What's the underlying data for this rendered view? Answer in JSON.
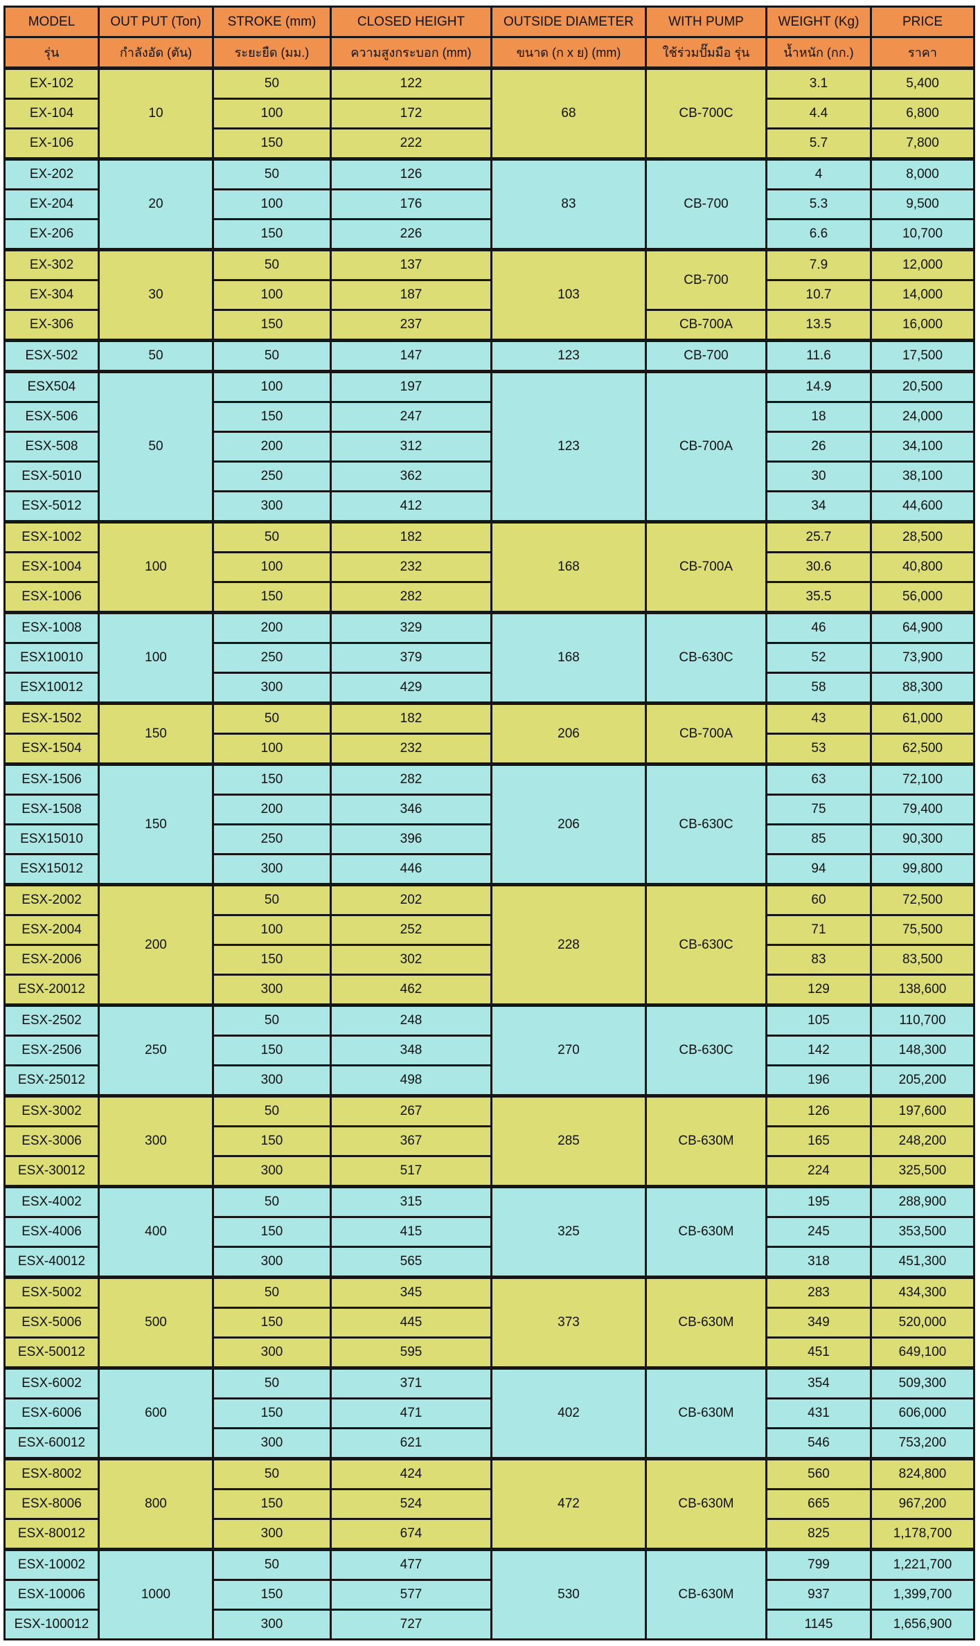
{
  "colors": {
    "header_bg": "#f0924d",
    "row_yellow": "#dcdd74",
    "row_cyan": "#abe7e5",
    "border": "#161616"
  },
  "table": {
    "headers_en": [
      "MODEL",
      "OUT PUT (Ton)",
      "STROKE (mm)",
      "CLOSED HEIGHT",
      "OUTSIDE DIAMETER",
      "WITH PUMP",
      "WEIGHT (Kg)",
      "PRICE"
    ],
    "headers_th": [
      "รุ่น",
      "กำลังอัด (ตัน)",
      "ระยะยืด (มม.)",
      "ความสูงกระบอก (mm)",
      "ขนาด (ก x ย) (mm)",
      "ใช้ร่วมปั๊มมือ รุ่น",
      "น้ำหนัก (กก.)",
      "ราคา"
    ],
    "groups": [
      {
        "tone": "yellow",
        "output": "10",
        "outside_diameter": "68",
        "pumps": [
          {
            "label": "CB-700C",
            "span": 3
          }
        ],
        "rows": [
          {
            "model": "EX-102",
            "stroke": "50",
            "closed_height": "122",
            "weight": "3.1",
            "price": "5,400"
          },
          {
            "model": "EX-104",
            "stroke": "100",
            "closed_height": "172",
            "weight": "4.4",
            "price": "6,800"
          },
          {
            "model": "EX-106",
            "stroke": "150",
            "closed_height": "222",
            "weight": "5.7",
            "price": "7,800"
          }
        ]
      },
      {
        "tone": "cyan",
        "output": "20",
        "outside_diameter": "83",
        "pumps": [
          {
            "label": "CB-700",
            "span": 3
          }
        ],
        "rows": [
          {
            "model": "EX-202",
            "stroke": "50",
            "closed_height": "126",
            "weight": "4",
            "price": "8,000"
          },
          {
            "model": "EX-204",
            "stroke": "100",
            "closed_height": "176",
            "weight": "5.3",
            "price": "9,500"
          },
          {
            "model": "EX-206",
            "stroke": "150",
            "closed_height": "226",
            "weight": "6.6",
            "price": "10,700"
          }
        ]
      },
      {
        "tone": "yellow",
        "output": "30",
        "outside_diameter": "103",
        "pumps": [
          {
            "label": "CB-700",
            "span": 2
          },
          {
            "label": "CB-700A",
            "span": 1
          }
        ],
        "rows": [
          {
            "model": "EX-302",
            "stroke": "50",
            "closed_height": "137",
            "weight": "7.9",
            "price": "12,000"
          },
          {
            "model": "EX-304",
            "stroke": "100",
            "closed_height": "187",
            "weight": "10.7",
            "price": "14,000"
          },
          {
            "model": "EX-306",
            "stroke": "150",
            "closed_height": "237",
            "weight": "13.5",
            "price": "16,000"
          }
        ]
      },
      {
        "tone": "cyan",
        "output": "50",
        "outside_diameter": "123",
        "pumps": [
          {
            "label": "CB-700",
            "span": 1
          }
        ],
        "rows": [
          {
            "model": "ESX-502",
            "stroke": "50",
            "closed_height": "147",
            "weight": "11.6",
            "price": "17,500"
          }
        ]
      },
      {
        "tone": "cyan",
        "output": "50",
        "outside_diameter": "123",
        "pumps": [
          {
            "label": "CB-700A",
            "span": 5
          }
        ],
        "rows": [
          {
            "model": "ESX504",
            "stroke": "100",
            "closed_height": "197",
            "weight": "14.9",
            "price": "20,500"
          },
          {
            "model": "ESX-506",
            "stroke": "150",
            "closed_height": "247",
            "weight": "18",
            "price": "24,000"
          },
          {
            "model": "ESX-508",
            "stroke": "200",
            "closed_height": "312",
            "weight": "26",
            "price": "34,100"
          },
          {
            "model": "ESX-5010",
            "stroke": "250",
            "closed_height": "362",
            "weight": "30",
            "price": "38,100"
          },
          {
            "model": "ESX-5012",
            "stroke": "300",
            "closed_height": "412",
            "weight": "34",
            "price": "44,600"
          }
        ]
      },
      {
        "tone": "yellow",
        "output": "100",
        "outside_diameter": "168",
        "pumps": [
          {
            "label": "CB-700A",
            "span": 3
          }
        ],
        "rows": [
          {
            "model": "ESX-1002",
            "stroke": "50",
            "closed_height": "182",
            "weight": "25.7",
            "price": "28,500"
          },
          {
            "model": "ESX-1004",
            "stroke": "100",
            "closed_height": "232",
            "weight": "30.6",
            "price": "40,800"
          },
          {
            "model": "ESX-1006",
            "stroke": "150",
            "closed_height": "282",
            "weight": "35.5",
            "price": "56,000"
          }
        ]
      },
      {
        "tone": "cyan",
        "output": "100",
        "outside_diameter": "168",
        "pumps": [
          {
            "label": "CB-630C",
            "span": 3
          }
        ],
        "rows": [
          {
            "model": "ESX-1008",
            "stroke": "200",
            "closed_height": "329",
            "weight": "46",
            "price": "64,900"
          },
          {
            "model": "ESX10010",
            "stroke": "250",
            "closed_height": "379",
            "weight": "52",
            "price": "73,900"
          },
          {
            "model": "ESX10012",
            "stroke": "300",
            "closed_height": "429",
            "weight": "58",
            "price": "88,300"
          }
        ]
      },
      {
        "tone": "yellow",
        "output": "150",
        "outside_diameter": "206",
        "pumps": [
          {
            "label": "CB-700A",
            "span": 2
          }
        ],
        "rows": [
          {
            "model": "ESX-1502",
            "stroke": "50",
            "closed_height": "182",
            "weight": "43",
            "price": "61,000"
          },
          {
            "model": "ESX-1504",
            "stroke": "100",
            "closed_height": "232",
            "weight": "53",
            "price": "62,500"
          }
        ]
      },
      {
        "tone": "cyan",
        "output": "150",
        "outside_diameter": "206",
        "pumps": [
          {
            "label": "CB-630C",
            "span": 4
          }
        ],
        "rows": [
          {
            "model": "ESX-1506",
            "stroke": "150",
            "closed_height": "282",
            "weight": "63",
            "price": "72,100"
          },
          {
            "model": "ESX-1508",
            "stroke": "200",
            "closed_height": "346",
            "weight": "75",
            "price": "79,400"
          },
          {
            "model": "ESX15010",
            "stroke": "250",
            "closed_height": "396",
            "weight": "85",
            "price": "90,300"
          },
          {
            "model": "ESX15012",
            "stroke": "300",
            "closed_height": "446",
            "weight": "94",
            "price": "99,800"
          }
        ]
      },
      {
        "tone": "yellow",
        "output": "200",
        "outside_diameter": "228",
        "pumps": [
          {
            "label": "CB-630C",
            "span": 4
          }
        ],
        "rows": [
          {
            "model": "ESX-2002",
            "stroke": "50",
            "closed_height": "202",
            "weight": "60",
            "price": "72,500"
          },
          {
            "model": "ESX-2004",
            "stroke": "100",
            "closed_height": "252",
            "weight": "71",
            "price": "75,500"
          },
          {
            "model": "ESX-2006",
            "stroke": "150",
            "closed_height": "302",
            "weight": "83",
            "price": "83,500"
          },
          {
            "model": "ESX-20012",
            "stroke": "300",
            "closed_height": "462",
            "weight": "129",
            "price": "138,600"
          }
        ]
      },
      {
        "tone": "cyan",
        "output": "250",
        "outside_diameter": "270",
        "pumps": [
          {
            "label": "CB-630C",
            "span": 3
          }
        ],
        "rows": [
          {
            "model": "ESX-2502",
            "stroke": "50",
            "closed_height": "248",
            "weight": "105",
            "price": "110,700"
          },
          {
            "model": "ESX-2506",
            "stroke": "150",
            "closed_height": "348",
            "weight": "142",
            "price": "148,300"
          },
          {
            "model": "ESX-25012",
            "stroke": "300",
            "closed_height": "498",
            "weight": "196",
            "price": "205,200"
          }
        ]
      },
      {
        "tone": "yellow",
        "output": "300",
        "outside_diameter": "285",
        "pumps": [
          {
            "label": "CB-630M",
            "span": 3
          }
        ],
        "rows": [
          {
            "model": "ESX-3002",
            "stroke": "50",
            "closed_height": "267",
            "weight": "126",
            "price": "197,600"
          },
          {
            "model": "ESX-3006",
            "stroke": "150",
            "closed_height": "367",
            "weight": "165",
            "price": "248,200"
          },
          {
            "model": "ESX-30012",
            "stroke": "300",
            "closed_height": "517",
            "weight": "224",
            "price": "325,500"
          }
        ]
      },
      {
        "tone": "cyan",
        "output": "400",
        "outside_diameter": "325",
        "pumps": [
          {
            "label": "CB-630M",
            "span": 3
          }
        ],
        "rows": [
          {
            "model": "ESX-4002",
            "stroke": "50",
            "closed_height": "315",
            "weight": "195",
            "price": "288,900"
          },
          {
            "model": "ESX-4006",
            "stroke": "150",
            "closed_height": "415",
            "weight": "245",
            "price": "353,500"
          },
          {
            "model": "ESX-40012",
            "stroke": "300",
            "closed_height": "565",
            "weight": "318",
            "price": "451,300"
          }
        ]
      },
      {
        "tone": "yellow",
        "output": "500",
        "outside_diameter": "373",
        "pumps": [
          {
            "label": "CB-630M",
            "span": 3
          }
        ],
        "rows": [
          {
            "model": "ESX-5002",
            "stroke": "50",
            "closed_height": "345",
            "weight": "283",
            "price": "434,300"
          },
          {
            "model": "ESX-5006",
            "stroke": "150",
            "closed_height": "445",
            "weight": "349",
            "price": "520,000"
          },
          {
            "model": "ESX-50012",
            "stroke": "300",
            "closed_height": "595",
            "weight": "451",
            "price": "649,100"
          }
        ]
      },
      {
        "tone": "cyan",
        "output": "600",
        "outside_diameter": "402",
        "pumps": [
          {
            "label": "CB-630M",
            "span": 3
          }
        ],
        "rows": [
          {
            "model": "ESX-6002",
            "stroke": "50",
            "closed_height": "371",
            "weight": "354",
            "price": "509,300"
          },
          {
            "model": "ESX-6006",
            "stroke": "150",
            "closed_height": "471",
            "weight": "431",
            "price": "606,000"
          },
          {
            "model": "ESX-60012",
            "stroke": "300",
            "closed_height": "621",
            "weight": "546",
            "price": "753,200"
          }
        ]
      },
      {
        "tone": "yellow",
        "output": "800",
        "outside_diameter": "472",
        "pumps": [
          {
            "label": "CB-630M",
            "span": 3
          }
        ],
        "rows": [
          {
            "model": "ESX-8002",
            "stroke": "50",
            "closed_height": "424",
            "weight": "560",
            "price": "824,800"
          },
          {
            "model": "ESX-8006",
            "stroke": "150",
            "closed_height": "524",
            "weight": "665",
            "price": "967,200"
          },
          {
            "model": "ESX-80012",
            "stroke": "300",
            "closed_height": "674",
            "weight": "825",
            "price": "1,178,700"
          }
        ]
      },
      {
        "tone": "cyan",
        "output": "1000",
        "outside_diameter": "530",
        "pumps": [
          {
            "label": "CB-630M",
            "span": 3
          }
        ],
        "rows": [
          {
            "model": "ESX-10002",
            "stroke": "50",
            "closed_height": "477",
            "weight": "799",
            "price": "1,221,700"
          },
          {
            "model": "ESX-10006",
            "stroke": "150",
            "closed_height": "577",
            "weight": "937",
            "price": "1,399,700"
          },
          {
            "model": "ESX-100012",
            "stroke": "300",
            "closed_height": "727",
            "weight": "1145",
            "price": "1,656,900"
          }
        ]
      }
    ]
  }
}
